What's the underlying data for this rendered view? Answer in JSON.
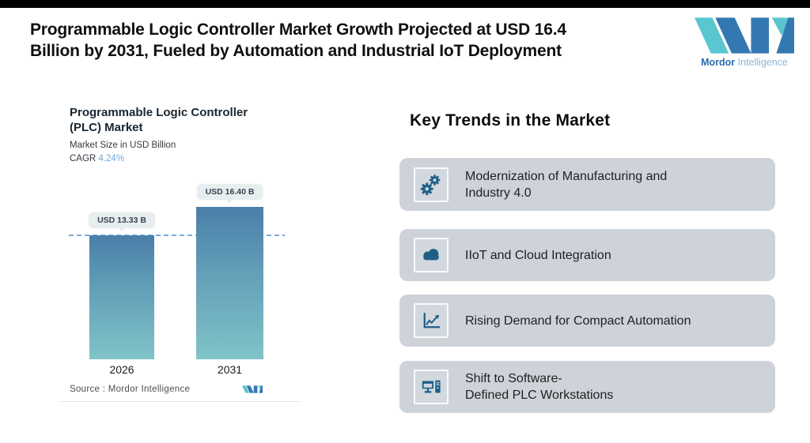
{
  "page": {
    "title_line1": "Programmable Logic Controller Market Growth Projected at USD 16.4",
    "title_line2": "Billion by 2031, Fueled by Automation and Industrial IoT Deployment"
  },
  "brand": {
    "word_primary": "Mordor",
    "word_secondary": "Intelligence"
  },
  "colors": {
    "brand_blue": "#3478b2",
    "brand_teal": "#59c6d0",
    "icon_blue": "#1d5f87",
    "card_bg": "#ced3da",
    "bar_gradient_top": "#4a7fa9",
    "bar_gradient_bottom": "#80c3c8",
    "dashed_reference_line": "#7aa9d8",
    "cagr_value_color": "#6fa8dc"
  },
  "chart": {
    "title_line1": "Programmable Logic Controller",
    "title_line2": "(PLC) Market",
    "subtitle": "Market Size in USD Billion",
    "cagr_label": "CAGR",
    "cagr_value": "4.24%",
    "source": "Source :  Mordor Intelligence"
  },
  "chart_data": {
    "type": "bar",
    "categories": [
      "2026",
      "2031"
    ],
    "values": [
      13.33,
      16.4
    ],
    "data_labels": [
      "USD 13.33 B",
      "USD 16.40 B"
    ],
    "title": "Programmable Logic Controller (PLC) Market",
    "ylabel": "Market Size in USD Billion",
    "unit": "USD Billion",
    "cagr": "4.24%",
    "ylim": [
      0,
      16.4
    ],
    "grid": false,
    "legend": "none",
    "annotations": [
      "dashed horizontal reference line at the 2026 value"
    ],
    "source": "Mordor Intelligence"
  },
  "trends": {
    "heading": "Key Trends in the Market",
    "items": [
      {
        "icon": "gears-icon",
        "label_line1": "Modernization of Manufacturing and",
        "label_line2": "Industry 4.0"
      },
      {
        "icon": "cloud-icon",
        "label_line1": "IIoT and Cloud Integration",
        "label_line2": ""
      },
      {
        "icon": "line-chart-icon",
        "label_line1": "Rising Demand for Compact Automation",
        "label_line2": ""
      },
      {
        "icon": "desktop-computer-icon",
        "label_line1": "Shift to Software-",
        "label_line2": "Defined PLC Workstations"
      }
    ]
  }
}
